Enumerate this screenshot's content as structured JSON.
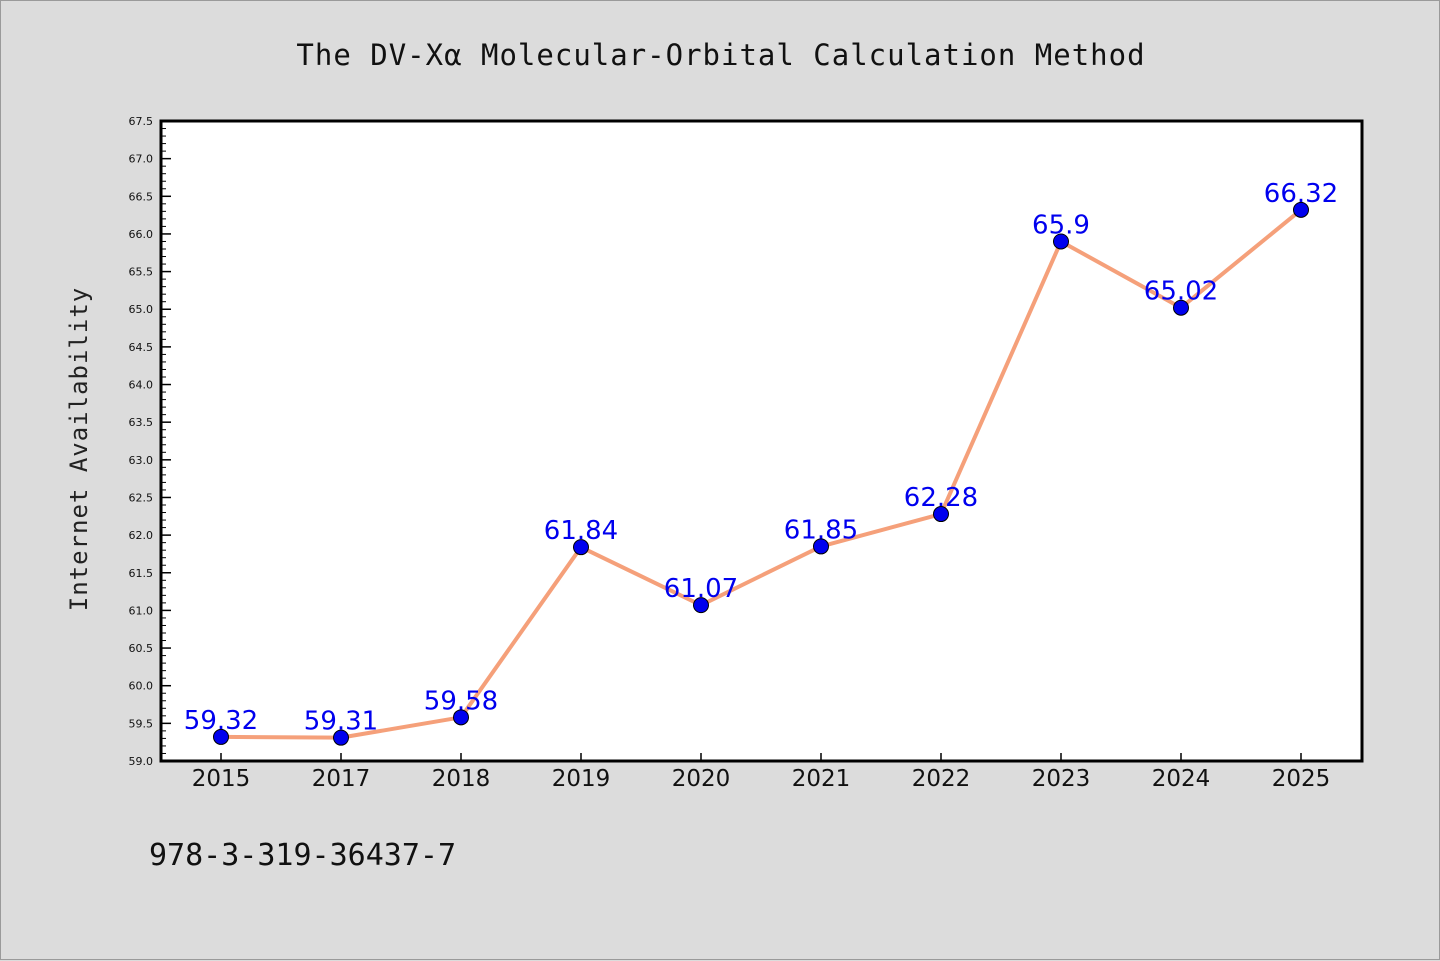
{
  "chart_data": {
    "type": "line",
    "title": "The DV-Xα Molecular-Orbital Calculation Method",
    "xlabel": "",
    "ylabel": "Internet Availability",
    "categories": [
      "2015",
      "2017",
      "2018",
      "2019",
      "2020",
      "2021",
      "2022",
      "2023",
      "2024",
      "2025"
    ],
    "series": [
      {
        "values": [
          59.32,
          59.31,
          59.58,
          61.84,
          61.07,
          61.85,
          62.28,
          65.9,
          65.02,
          66.32
        ],
        "labels": [
          "59.32",
          "59.31",
          "59.58",
          "61.84",
          "61.07",
          "61.85",
          "62.28",
          "65.9",
          "65.02",
          "66.32"
        ]
      }
    ],
    "ylim": [
      59.0,
      67.5
    ],
    "yticks": [
      "59.0",
      "59.5",
      "60.0",
      "60.5",
      "61.0",
      "61.5",
      "62.0",
      "62.5",
      "63.0",
      "63.5",
      "64.0",
      "64.5",
      "65.0",
      "65.5",
      "66.0",
      "66.5",
      "67.0",
      "67.5"
    ],
    "grid": false,
    "legend": "none",
    "colors": {
      "line": "#f5a07a",
      "marker": "#0000ee",
      "data_label": "#0000ee",
      "background": "#dcdcdc",
      "plot_background": "#ffffff"
    }
  },
  "footer": {
    "isbn": "978-3-319-36437-7"
  }
}
